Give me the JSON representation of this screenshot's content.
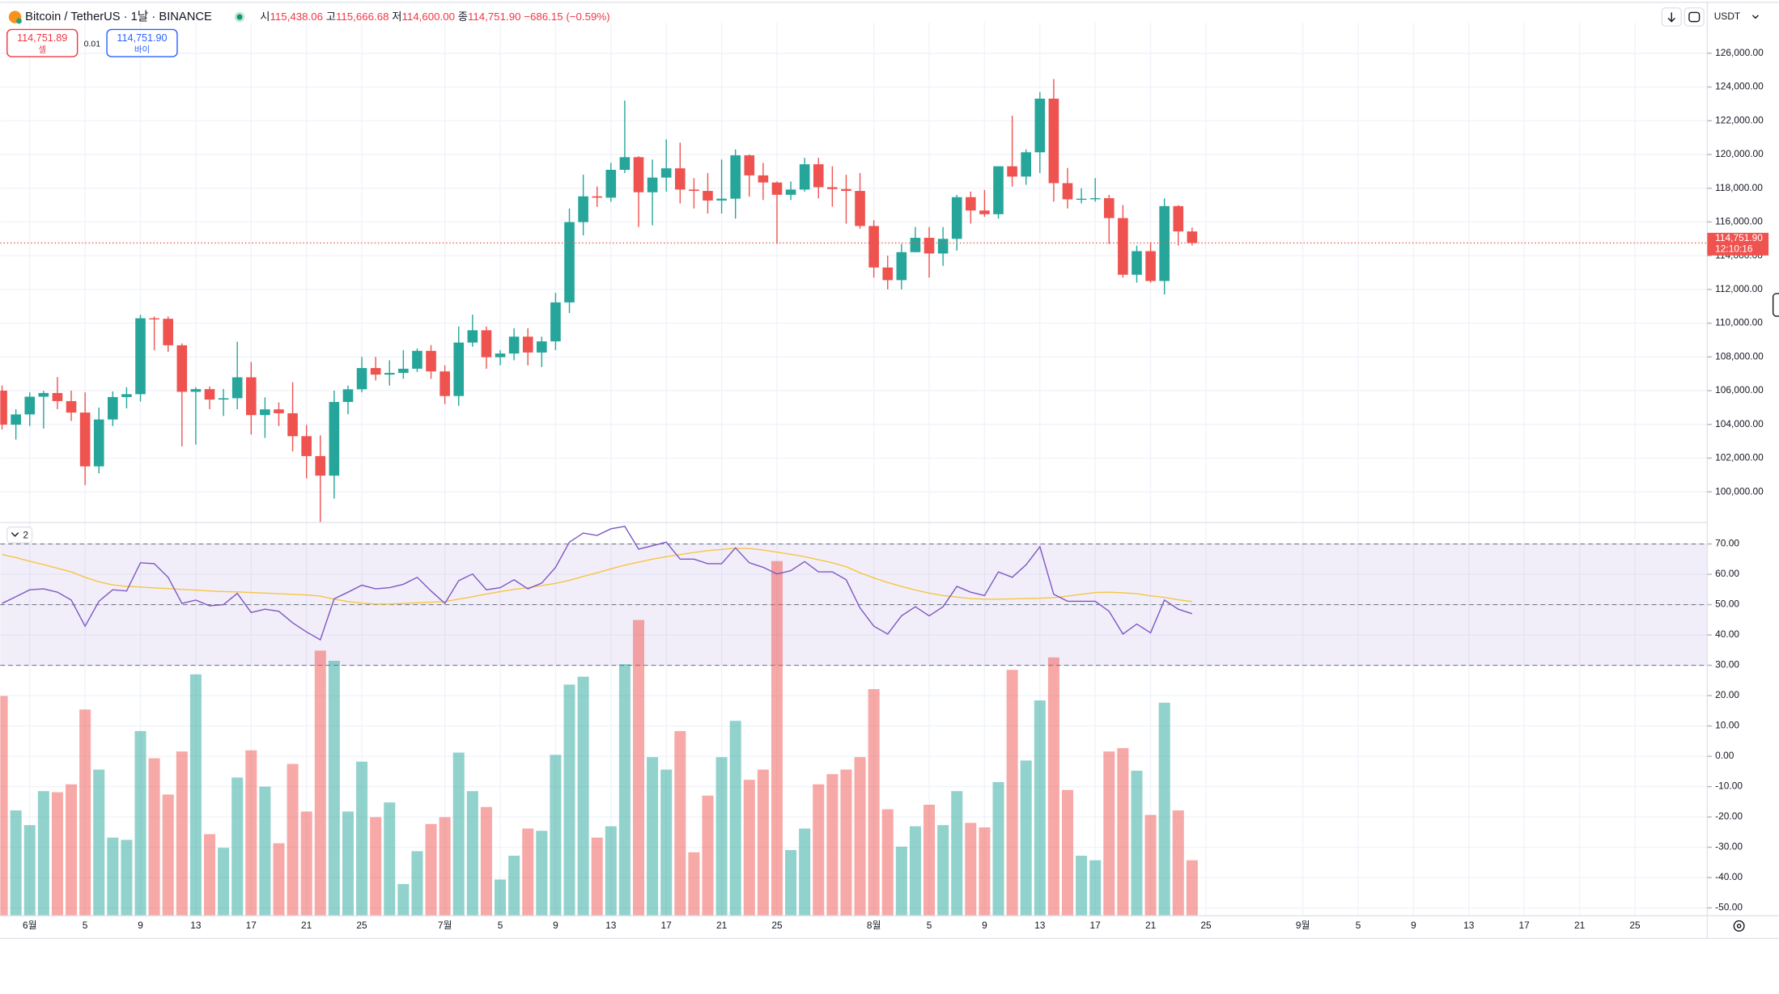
{
  "header": {
    "symbol": "Bitcoin / TetherUS · 1날 · BINANCE",
    "ohlc": [
      {
        "label": "시",
        "value": "115,438.06"
      },
      {
        "label": "고",
        "value": "115,666.68"
      },
      {
        "label": "저",
        "value": "114,600.00"
      },
      {
        "label": "종",
        "value": "114,751.90"
      }
    ],
    "change": "−686.15 (−0.59%)"
  },
  "trade": {
    "sell_price": "114,751.89",
    "sell_label": "셀",
    "spread": "0.01",
    "buy_price": "114,751.90",
    "buy_label": "바이"
  },
  "toolbar": {
    "currency": "USDT"
  },
  "pane_toggle": "2",
  "chart_data": [
    {
      "type": "candlestick",
      "x": [
        150,
        151,
        152,
        153,
        154,
        155,
        156,
        157,
        158,
        159,
        160,
        161,
        162,
        163,
        164,
        165,
        166,
        167,
        168,
        169,
        170,
        171,
        172,
        173,
        174,
        175,
        176,
        177,
        178,
        179,
        180,
        181,
        182,
        183,
        184,
        185,
        186,
        187,
        188,
        189,
        190,
        191,
        192,
        193,
        194,
        195,
        196,
        197,
        198,
        199,
        200,
        201,
        202,
        203,
        204,
        205,
        206,
        207,
        208,
        209,
        210,
        211,
        212,
        213,
        214,
        215,
        216,
        217,
        218,
        219,
        220,
        221,
        222,
        223,
        224,
        225,
        226,
        227,
        228,
        229,
        230,
        231,
        232,
        233,
        234,
        235,
        236
      ],
      "open": [
        106000,
        103980,
        104590,
        105640,
        105860,
        105380,
        104700,
        101510,
        104290,
        105620,
        105790,
        110290,
        110260,
        108690,
        105930,
        106090,
        105470,
        105550,
        106790,
        104550,
        104890,
        104660,
        103300,
        102120,
        100960,
        105330,
        106080,
        107340,
        106950,
        107050,
        107300,
        108360,
        107140,
        105680,
        108850,
        109580,
        107980,
        108200,
        109200,
        108260,
        108920,
        111230,
        115990,
        117520,
        117440,
        119090,
        119840,
        117760,
        118630,
        119180,
        117920,
        117840,
        117270,
        117380,
        119950,
        118760,
        118340,
        117610,
        117920,
        119420,
        118060,
        117950,
        117840,
        115760,
        113300,
        112550,
        114210,
        115060,
        114130,
        115000,
        117470,
        116680,
        116460,
        119300,
        118690,
        120130,
        123310,
        118300,
        117340,
        117380,
        117410,
        116230,
        112870,
        114270,
        112500,
        116940,
        115438.06
      ],
      "high": [
        106300,
        104900,
        105900,
        105990,
        106800,
        106000,
        105900,
        105000,
        105950,
        106200,
        110500,
        110390,
        110400,
        108800,
        106200,
        106250,
        106100,
        108900,
        107700,
        105600,
        105300,
        106500,
        103980,
        103350,
        106000,
        106300,
        108000,
        108000,
        107800,
        108400,
        108500,
        108700,
        107500,
        109800,
        110500,
        109800,
        108400,
        109700,
        109700,
        109200,
        111800,
        116800,
        118800,
        118100,
        119500,
        123200,
        119900,
        119700,
        120900,
        120700,
        118600,
        118900,
        119700,
        120300,
        120000,
        119500,
        118400,
        118400,
        119800,
        119800,
        119300,
        118800,
        118900,
        116100,
        114000,
        114700,
        115700,
        115700,
        115700,
        117600,
        117800,
        117900,
        119300,
        122300,
        120300,
        123700,
        124470,
        119200,
        118000,
        118600,
        117600,
        117000,
        114600,
        114800,
        117400,
        117000,
        115666.68
      ],
      "low": [
        103700,
        103100,
        103900,
        103750,
        104900,
        104200,
        100400,
        101100,
        103900,
        104950,
        105350,
        108400,
        108300,
        102700,
        102800,
        104900,
        104500,
        104900,
        103400,
        103200,
        103900,
        102400,
        100800,
        98200,
        99600,
        104600,
        105900,
        106600,
        106300,
        106700,
        107100,
        106700,
        105200,
        105100,
        108600,
        107300,
        107500,
        107800,
        107500,
        107400,
        108400,
        110600,
        115200,
        116900,
        117200,
        118900,
        115700,
        115800,
        117800,
        117100,
        116800,
        116500,
        116500,
        116200,
        117500,
        117300,
        114700,
        117300,
        117800,
        117400,
        116900,
        115900,
        115600,
        112700,
        112000,
        112000,
        114200,
        112700,
        113400,
        114300,
        115900,
        116300,
        116200,
        118100,
        118200,
        118900,
        117200,
        116800,
        117100,
        117200,
        114700,
        112700,
        112400,
        112400,
        111700,
        114600,
        114600
      ],
      "close": [
        103980,
        104590,
        105640,
        105860,
        105380,
        104700,
        101510,
        104290,
        105620,
        105790,
        110290,
        110260,
        108690,
        105930,
        106090,
        105470,
        105550,
        106790,
        104550,
        104890,
        104660,
        103300,
        102120,
        100960,
        105330,
        106080,
        107340,
        106950,
        107050,
        107300,
        108360,
        107140,
        105680,
        108850,
        109580,
        107980,
        108200,
        109200,
        108260,
        108920,
        111230,
        115990,
        117520,
        117440,
        119090,
        119840,
        117760,
        118630,
        119180,
        117920,
        117840,
        117270,
        117380,
        119950,
        118760,
        118340,
        117610,
        117920,
        119420,
        118060,
        117950,
        117840,
        115760,
        113300,
        112550,
        114210,
        115060,
        114130,
        115000,
        117470,
        116680,
        116460,
        119300,
        118690,
        120130,
        123310,
        118300,
        117340,
        117380,
        117410,
        116230,
        112870,
        114270,
        112500,
        116940,
        115438.05,
        114751.9
      ],
      "up_color": "#26a69a",
      "down_color": "#ef5350",
      "xlim": [
        149.87,
        273.23
      ],
      "xticks": [
        {
          "value": 152,
          "label": "6월"
        },
        {
          "value": 156,
          "label": "5"
        },
        {
          "value": 160,
          "label": "9"
        },
        {
          "value": 164,
          "label": "13"
        },
        {
          "value": 168,
          "label": "17"
        },
        {
          "value": 172,
          "label": "21"
        },
        {
          "value": 176,
          "label": "25"
        },
        {
          "value": 182,
          "label": "7월"
        },
        {
          "value": 186,
          "label": "5"
        },
        {
          "value": 190,
          "label": "9"
        },
        {
          "value": 194,
          "label": "13"
        },
        {
          "value": 198,
          "label": "17"
        },
        {
          "value": 202,
          "label": "21"
        },
        {
          "value": 206,
          "label": "25"
        },
        {
          "value": 213,
          "label": "8월"
        },
        {
          "value": 217,
          "label": "5"
        },
        {
          "value": 221,
          "label": "9"
        },
        {
          "value": 225,
          "label": "13"
        },
        {
          "value": 229,
          "label": "17"
        },
        {
          "value": 233,
          "label": "21"
        },
        {
          "value": 237,
          "label": "25"
        },
        {
          "value": 244,
          "label": "9월"
        },
        {
          "value": 248,
          "label": "5"
        },
        {
          "value": 252,
          "label": "9"
        },
        {
          "value": 256,
          "label": "13"
        },
        {
          "value": 260,
          "label": "17"
        },
        {
          "value": 264,
          "label": "21"
        },
        {
          "value": 268,
          "label": "25"
        }
      ],
      "ylim": [
        98250,
        127680
      ],
      "yticks": [
        {
          "value": 100000,
          "label": "100,000.00"
        },
        {
          "value": 102000,
          "label": "102,000.00"
        },
        {
          "value": 104000,
          "label": "104,000.00"
        },
        {
          "value": 106000,
          "label": "106,000.00"
        },
        {
          "value": 108000,
          "label": "108,000.00"
        },
        {
          "value": 110000,
          "label": "110,000.00"
        },
        {
          "value": 112000,
          "label": "112,000.00"
        },
        {
          "value": 114000,
          "label": "114,000.00"
        },
        {
          "value": 116000,
          "label": "116,000.00"
        },
        {
          "value": 118000,
          "label": "118,000.00"
        },
        {
          "value": 120000,
          "label": "120,000.00"
        },
        {
          "value": 122000,
          "label": "122,000.00"
        },
        {
          "value": 124000,
          "label": "124,000.00"
        },
        {
          "value": 126000,
          "label": "126,000.00"
        }
      ],
      "grid": true,
      "last_price": {
        "value": 114751.9,
        "label": "114,751.90",
        "countdown": "12:10:16"
      }
    },
    {
      "type": "indicator",
      "rsi": {
        "color": "#7e57c2",
        "values": [
          50.4,
          52.6,
          54.9,
          55.2,
          54.1,
          51.5,
          42.9,
          51.1,
          54.9,
          54.5,
          63.8,
          63.5,
          59.0,
          50.4,
          51.5,
          49.6,
          50.0,
          53.7,
          47.4,
          48.5,
          47.8,
          44.0,
          41.0,
          38.4,
          51.9,
          54.1,
          56.4,
          55.2,
          55.6,
          56.7,
          59.0,
          54.5,
          50.4,
          57.9,
          60.1,
          54.9,
          55.6,
          58.2,
          55.2,
          57.1,
          62.3,
          70.6,
          73.6,
          72.8,
          75.0,
          75.8,
          68.3,
          69.4,
          70.6,
          65.0,
          65.0,
          63.5,
          63.5,
          68.7,
          63.8,
          62.3,
          60.1,
          61.2,
          64.2,
          60.8,
          60.8,
          58.2,
          48.9,
          42.9,
          40.3,
          46.3,
          49.3,
          46.3,
          49.3,
          56.0,
          54.1,
          53.0,
          60.8,
          59.0,
          63.1,
          69.1,
          53.4,
          51.1,
          51.1,
          51.1,
          47.8,
          40.3,
          43.6,
          40.7,
          51.5,
          48.5,
          47.0
        ]
      },
      "rsi_ma": {
        "color": "#f5c542",
        "values": [
          66.5,
          65.5,
          64.3,
          63.2,
          62.0,
          60.8,
          59.0,
          57.5,
          56.5,
          56.0,
          55.8,
          55.5,
          55.3,
          55.0,
          54.8,
          54.5,
          54.3,
          54.2,
          54.0,
          53.8,
          53.6,
          53.4,
          53.2,
          52.8,
          51.8,
          51.0,
          50.5,
          50.2,
          50.2,
          50.4,
          50.6,
          50.8,
          51.0,
          51.8,
          52.6,
          53.5,
          54.3,
          55.0,
          55.6,
          56.3,
          57.0,
          58.0,
          59.3,
          60.5,
          61.8,
          63.0,
          64.0,
          65.0,
          65.8,
          66.5,
          67.2,
          67.8,
          68.2,
          68.6,
          68.5,
          68.0,
          67.3,
          66.6,
          65.8,
          64.8,
          63.8,
          62.5,
          60.5,
          58.8,
          57.3,
          56.0,
          54.8,
          53.8,
          53.0,
          52.5,
          52.0,
          51.8,
          51.8,
          51.9,
          52.0,
          52.1,
          52.3,
          52.8,
          53.4,
          54.0,
          54.1,
          53.9,
          53.6,
          52.9,
          52.4,
          51.6,
          51.0
        ]
      },
      "volume": {
        "vlim": [
          0,
          34.6
        ],
        "values": [
          19.4,
          9.3,
          8.0,
          11.0,
          10.9,
          11.6,
          18.2,
          12.9,
          6.9,
          6.7,
          16.3,
          13.9,
          10.7,
          14.5,
          21.3,
          7.2,
          6.0,
          12.2,
          14.6,
          11.4,
          6.4,
          13.4,
          9.2,
          23.4,
          22.5,
          9.2,
          13.6,
          8.7,
          10.0,
          2.8,
          5.7,
          8.1,
          8.7,
          14.4,
          11.0,
          9.6,
          3.2,
          5.3,
          7.7,
          7.5,
          14.2,
          20.4,
          21.1,
          6.9,
          7.9,
          22.2,
          26.1,
          14.0,
          12.9,
          16.3,
          5.6,
          10.6,
          14.0,
          17.2,
          12.0,
          12.9,
          31.3,
          5.8,
          7.7,
          11.6,
          12.5,
          12.9,
          14.0,
          20.0,
          9.4,
          6.1,
          7.9,
          9.8,
          8.0,
          11.0,
          8.2,
          7.8,
          11.8,
          21.7,
          13.7,
          19.0,
          22.8,
          11.1,
          5.3,
          4.9,
          14.5,
          14.8,
          12.8,
          8.9,
          18.8,
          9.3,
          4.9
        ]
      },
      "band_levels": [
        30,
        50,
        70
      ],
      "band_color": "#7e57c2",
      "ylim": [
        -52.6,
        76.7
      ],
      "yticks": [
        {
          "value": 70,
          "label": "70.00"
        },
        {
          "value": 60,
          "label": "60.00"
        },
        {
          "value": 50,
          "label": "50.00"
        },
        {
          "value": 40,
          "label": "40.00"
        },
        {
          "value": 30,
          "label": "30.00"
        },
        {
          "value": 20,
          "label": "20.00"
        },
        {
          "value": 10,
          "label": "10.00"
        },
        {
          "value": 0,
          "label": "0.00"
        },
        {
          "value": -10,
          "label": "-10.00"
        },
        {
          "value": -20,
          "label": "-20.00"
        },
        {
          "value": -30,
          "label": "-30.00"
        },
        {
          "value": -40,
          "label": "-40.00"
        },
        {
          "value": -50,
          "label": "-50.00"
        }
      ],
      "grid": true
    }
  ]
}
